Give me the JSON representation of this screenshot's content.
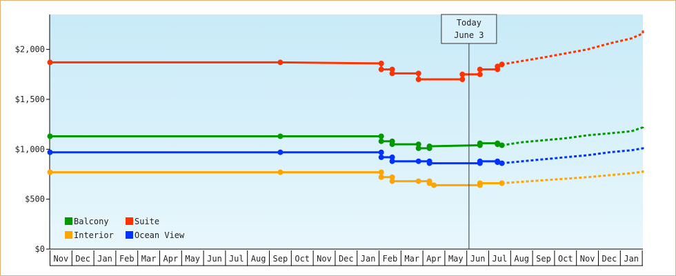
{
  "chart_data": {
    "type": "line",
    "title": "",
    "xlabel": "",
    "ylabel": "",
    "y_ticks": [
      "$0",
      "$500",
      "$1,000",
      "$1,500",
      "$2,000"
    ],
    "y_tick_values": [
      0,
      500,
      1000,
      1500,
      2000
    ],
    "ylim": [
      0,
      2350
    ],
    "x_axis_months": [
      "Nov",
      "Dec",
      "Jan",
      "Feb",
      "Mar",
      "Apr",
      "May",
      "Jun",
      "Jul",
      "Aug",
      "Sep",
      "Oct",
      "Nov",
      "Dec",
      "Jan",
      "Feb",
      "Mar",
      "Apr",
      "May",
      "Jun",
      "Jul",
      "Aug",
      "Sep",
      "Oct",
      "Nov",
      "Dec",
      "Jan"
    ],
    "today_marker": {
      "line1": "Today",
      "line2": "June 3",
      "month_index": 19.1
    },
    "legend": {
      "position": "bottom-left",
      "items": [
        {
          "name": "Balcony",
          "color": "#009900"
        },
        {
          "name": "Suite",
          "color": "#ff3300"
        },
        {
          "name": "Interior",
          "color": "#ffa500"
        },
        {
          "name": "Ocean View",
          "color": "#0033ff"
        }
      ]
    },
    "series": [
      {
        "name": "Suite",
        "color": "#ff3300",
        "history": [
          [
            0,
            1870
          ],
          [
            10.5,
            1870
          ],
          [
            15.1,
            1860
          ],
          [
            15.1,
            1800
          ],
          [
            15.6,
            1800
          ],
          [
            15.6,
            1760
          ],
          [
            16.8,
            1760
          ],
          [
            16.8,
            1700
          ],
          [
            17.8,
            1700
          ],
          [
            18.8,
            1700
          ],
          [
            18.8,
            1750
          ],
          [
            19.6,
            1750
          ],
          [
            19.6,
            1800
          ],
          [
            20.4,
            1800
          ],
          [
            20.4,
            1830
          ],
          [
            20.6,
            1850
          ]
        ],
        "projection": [
          [
            20.6,
            1850
          ],
          [
            22.5,
            1920
          ],
          [
            24.5,
            2000
          ],
          [
            25.5,
            2060
          ],
          [
            26.5,
            2110
          ],
          [
            27.5,
            2160
          ],
          [
            28.5,
            2210
          ]
        ]
      },
      {
        "name": "Balcony",
        "color": "#009900",
        "history": [
          [
            0,
            1130
          ],
          [
            10.5,
            1130
          ],
          [
            15.1,
            1130
          ],
          [
            15.1,
            1080
          ],
          [
            15.6,
            1080
          ],
          [
            15.6,
            1050
          ],
          [
            16.8,
            1050
          ],
          [
            16.8,
            1010
          ],
          [
            17.3,
            1010
          ],
          [
            17.3,
            1030
          ],
          [
            19.6,
            1040
          ],
          [
            19.6,
            1060
          ],
          [
            20.4,
            1060
          ],
          [
            20.4,
            1050
          ],
          [
            20.6,
            1040
          ]
        ],
        "projection": [
          [
            20.6,
            1040
          ],
          [
            21.5,
            1070
          ],
          [
            22.5,
            1090
          ],
          [
            23.5,
            1110
          ],
          [
            24.5,
            1140
          ],
          [
            25.5,
            1160
          ],
          [
            26.5,
            1180
          ],
          [
            27.5,
            1220
          ],
          [
            28.5,
            1240
          ]
        ]
      },
      {
        "name": "Ocean View",
        "color": "#0033ff",
        "history": [
          [
            0,
            970
          ],
          [
            10.5,
            970
          ],
          [
            15.1,
            970
          ],
          [
            15.1,
            920
          ],
          [
            15.6,
            920
          ],
          [
            15.6,
            880
          ],
          [
            16.8,
            880
          ],
          [
            17.3,
            880
          ],
          [
            17.3,
            860
          ],
          [
            19.6,
            860
          ],
          [
            19.6,
            880
          ],
          [
            20.4,
            880
          ],
          [
            20.4,
            870
          ],
          [
            20.6,
            860
          ]
        ],
        "projection": [
          [
            20.6,
            860
          ],
          [
            22.5,
            900
          ],
          [
            24.5,
            940
          ],
          [
            25.5,
            970
          ],
          [
            26.5,
            990
          ],
          [
            27.5,
            1010
          ],
          [
            28.5,
            1030
          ]
        ]
      },
      {
        "name": "Interior",
        "color": "#ffa500",
        "history": [
          [
            0,
            770
          ],
          [
            10.5,
            770
          ],
          [
            15.1,
            770
          ],
          [
            15.1,
            720
          ],
          [
            15.6,
            720
          ],
          [
            15.6,
            680
          ],
          [
            16.8,
            680
          ],
          [
            17.3,
            680
          ],
          [
            17.3,
            660
          ],
          [
            17.5,
            640
          ],
          [
            19.6,
            640
          ],
          [
            19.6,
            660
          ],
          [
            20.6,
            660
          ]
        ],
        "projection": [
          [
            20.6,
            660
          ],
          [
            22.5,
            690
          ],
          [
            24.5,
            720
          ],
          [
            25.5,
            740
          ],
          [
            26.5,
            760
          ],
          [
            27.5,
            775
          ],
          [
            28.5,
            790
          ]
        ]
      }
    ],
    "markers": {
      "Suite": [
        [
          0,
          1870
        ],
        [
          10.5,
          1870
        ],
        [
          15.1,
          1860
        ],
        [
          15.1,
          1800
        ],
        [
          15.6,
          1800
        ],
        [
          15.6,
          1760
        ],
        [
          16.8,
          1760
        ],
        [
          16.8,
          1700
        ],
        [
          18.8,
          1700
        ],
        [
          18.8,
          1750
        ],
        [
          19.6,
          1750
        ],
        [
          19.6,
          1800
        ],
        [
          20.4,
          1800
        ],
        [
          20.4,
          1830
        ],
        [
          20.6,
          1850
        ]
      ],
      "Balcony": [
        [
          0,
          1130
        ],
        [
          10.5,
          1130
        ],
        [
          15.1,
          1130
        ],
        [
          15.1,
          1080
        ],
        [
          15.6,
          1080
        ],
        [
          15.6,
          1050
        ],
        [
          16.8,
          1050
        ],
        [
          16.8,
          1010
        ],
        [
          17.3,
          1010
        ],
        [
          17.3,
          1030
        ],
        [
          19.6,
          1040
        ],
        [
          19.6,
          1060
        ],
        [
          20.4,
          1060
        ],
        [
          20.4,
          1050
        ],
        [
          20.6,
          1040
        ]
      ],
      "Ocean View": [
        [
          0,
          970
        ],
        [
          10.5,
          970
        ],
        [
          15.1,
          970
        ],
        [
          15.1,
          920
        ],
        [
          15.6,
          920
        ],
        [
          15.6,
          880
        ],
        [
          16.8,
          880
        ],
        [
          17.3,
          880
        ],
        [
          17.3,
          860
        ],
        [
          19.6,
          860
        ],
        [
          19.6,
          880
        ],
        [
          20.4,
          880
        ],
        [
          20.4,
          870
        ],
        [
          20.6,
          860
        ]
      ],
      "Interior": [
        [
          0,
          770
        ],
        [
          10.5,
          770
        ],
        [
          15.1,
          770
        ],
        [
          15.1,
          720
        ],
        [
          15.6,
          720
        ],
        [
          15.6,
          680
        ],
        [
          16.8,
          680
        ],
        [
          17.3,
          680
        ],
        [
          17.3,
          660
        ],
        [
          17.5,
          640
        ],
        [
          19.6,
          640
        ],
        [
          19.6,
          660
        ],
        [
          20.6,
          660
        ]
      ]
    },
    "grid": false,
    "background": "gradient-light-blue"
  }
}
